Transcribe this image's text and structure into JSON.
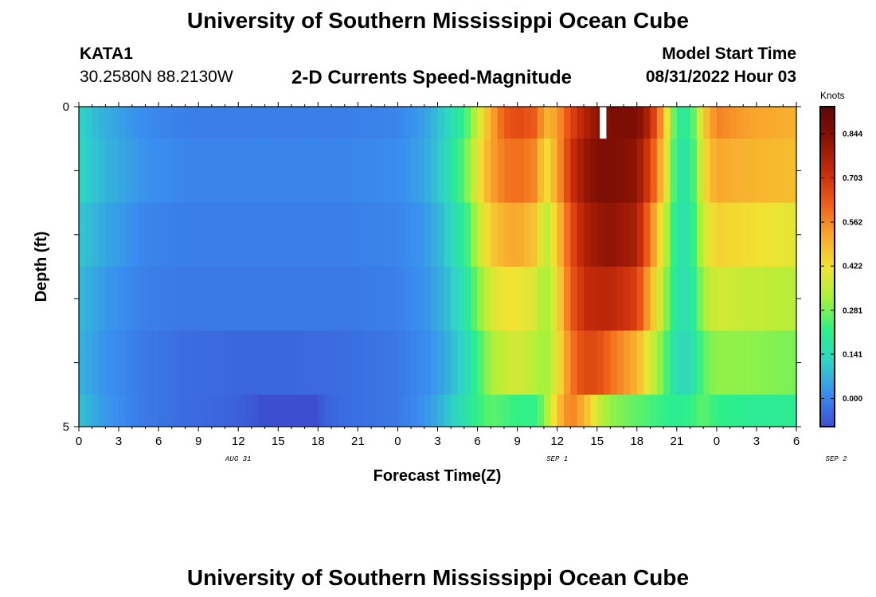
{
  "header": {
    "main_title": "University of Southern Mississippi Ocean Cube",
    "station_id": "KATA1",
    "station_coords": "30.2580N  88.2130W",
    "chart_title": "2-D Currents Speed-Magnitude",
    "model_label": "Model Start Time",
    "model_time": "08/31/2022 Hour 03"
  },
  "footer": {
    "title": "University of Southern Mississippi Ocean Cube"
  },
  "chart_data": {
    "type": "heatmap",
    "title": "2-D Currents Speed-Magnitude",
    "xlabel": "Forecast Time(Z)",
    "ylabel": "Depth (ft)",
    "x_tick_labels": [
      "0",
      "3",
      "6",
      "9",
      "12",
      "15",
      "18",
      "21",
      "0",
      "3",
      "6",
      "9",
      "12",
      "15",
      "18",
      "21",
      "0",
      "3",
      "6"
    ],
    "x_date_labels": [
      {
        "label": "AUG 31",
        "hour": 12
      },
      {
        "label": "SEP 1",
        "hour": 36
      },
      {
        "label": "SEP 2",
        "hour": 57
      }
    ],
    "x_range_hours": [
      0,
      54
    ],
    "y_tick_labels": [
      "0",
      "5"
    ],
    "y_range": [
      0,
      5
    ],
    "grid": false,
    "colorbar": {
      "unit_label": "Knots",
      "tick_labels": [
        "0.844",
        "0.703",
        "0.562",
        "0.422",
        "0.281",
        "0.141",
        "0.000"
      ],
      "tick_values": [
        0.844,
        0.703,
        0.562,
        0.422,
        0.281,
        0.141,
        0.0
      ],
      "range": [
        -0.09,
        0.93
      ],
      "colors": [
        "#3b4fd0",
        "#3a8cf0",
        "#2fd3c8",
        "#2bf08a",
        "#a6f23a",
        "#f2e232",
        "#f9a52d",
        "#ee5a18",
        "#c42a0a",
        "#8a1204",
        "#5e0606"
      ]
    },
    "depth_levels": [
      0,
      0.5,
      1.5,
      2.5,
      3.5,
      4.5,
      5
    ],
    "speed_profiles": [
      {
        "depth": "0-0.5",
        "keyframes": [
          [
            0,
            0.12
          ],
          [
            2,
            0.06
          ],
          [
            5,
            0.01
          ],
          [
            8,
            -0.01
          ],
          [
            12,
            -0.01
          ],
          [
            16,
            -0.01
          ],
          [
            20,
            -0.01
          ],
          [
            24,
            0.0
          ],
          [
            26,
            0.04
          ],
          [
            27.5,
            0.11
          ],
          [
            29,
            0.22
          ],
          [
            30,
            0.36
          ],
          [
            31,
            0.51
          ],
          [
            32,
            0.62
          ],
          [
            33,
            0.66
          ],
          [
            34.5,
            0.62
          ],
          [
            35,
            0.49
          ],
          [
            36,
            0.53
          ],
          [
            37,
            0.66
          ],
          [
            38,
            0.75
          ],
          [
            39,
            0.82
          ],
          [
            40,
            0.86
          ],
          [
            42,
            0.86
          ],
          [
            43,
            0.74
          ],
          [
            44,
            0.5
          ],
          [
            45,
            0.2
          ],
          [
            46,
            0.2
          ],
          [
            46.5,
            0.32
          ],
          [
            47,
            0.45
          ],
          [
            48,
            0.57
          ],
          [
            50,
            0.53
          ],
          [
            54,
            0.5
          ]
        ]
      },
      {
        "depth": "0.5-1.5",
        "keyframes": [
          [
            0,
            0.13
          ],
          [
            2,
            0.07
          ],
          [
            5,
            0.02
          ],
          [
            8,
            0.0
          ],
          [
            12,
            0.0
          ],
          [
            16,
            0.0
          ],
          [
            20,
            0.0
          ],
          [
            24,
            0.01
          ],
          [
            26,
            0.05
          ],
          [
            27.5,
            0.12
          ],
          [
            29,
            0.26
          ],
          [
            30,
            0.4
          ],
          [
            31,
            0.52
          ],
          [
            32,
            0.58
          ],
          [
            33,
            0.6
          ],
          [
            34.5,
            0.56
          ],
          [
            35,
            0.4
          ],
          [
            36,
            0.52
          ],
          [
            37,
            0.7
          ],
          [
            38,
            0.8
          ],
          [
            39,
            0.85
          ],
          [
            40,
            0.86
          ],
          [
            42,
            0.82
          ],
          [
            43,
            0.67
          ],
          [
            44,
            0.46
          ],
          [
            45,
            0.18
          ],
          [
            46,
            0.18
          ],
          [
            46.5,
            0.3
          ],
          [
            47,
            0.42
          ],
          [
            48,
            0.52
          ],
          [
            50,
            0.5
          ],
          [
            54,
            0.48
          ]
        ]
      },
      {
        "depth": "1.5-2.5",
        "keyframes": [
          [
            0,
            0.1
          ],
          [
            2,
            0.05
          ],
          [
            5,
            0.0
          ],
          [
            8,
            -0.01
          ],
          [
            12,
            -0.01
          ],
          [
            16,
            -0.01
          ],
          [
            20,
            -0.01
          ],
          [
            24,
            0.0
          ],
          [
            26,
            0.03
          ],
          [
            27.5,
            0.09
          ],
          [
            29,
            0.2
          ],
          [
            30,
            0.34
          ],
          [
            31,
            0.46
          ],
          [
            32,
            0.5
          ],
          [
            33,
            0.52
          ],
          [
            34.5,
            0.46
          ],
          [
            35,
            0.32
          ],
          [
            36,
            0.46
          ],
          [
            37,
            0.64
          ],
          [
            38,
            0.76
          ],
          [
            39,
            0.8
          ],
          [
            40,
            0.82
          ],
          [
            42,
            0.77
          ],
          [
            43,
            0.58
          ],
          [
            44,
            0.38
          ],
          [
            45,
            0.17
          ],
          [
            46,
            0.17
          ],
          [
            46.5,
            0.27
          ],
          [
            47,
            0.37
          ],
          [
            48,
            0.45
          ],
          [
            50,
            0.43
          ],
          [
            54,
            0.4
          ]
        ]
      },
      {
        "depth": "2.5-3.5",
        "keyframes": [
          [
            0,
            0.08
          ],
          [
            2,
            0.03
          ],
          [
            5,
            -0.01
          ],
          [
            8,
            -0.02
          ],
          [
            12,
            -0.02
          ],
          [
            16,
            -0.02
          ],
          [
            20,
            -0.02
          ],
          [
            24,
            -0.01
          ],
          [
            26,
            0.02
          ],
          [
            27.5,
            0.07
          ],
          [
            29,
            0.16
          ],
          [
            30,
            0.28
          ],
          [
            31,
            0.38
          ],
          [
            32,
            0.42
          ],
          [
            33,
            0.42
          ],
          [
            34.5,
            0.38
          ],
          [
            35,
            0.3
          ],
          [
            36,
            0.42
          ],
          [
            37,
            0.62
          ],
          [
            38,
            0.72
          ],
          [
            39,
            0.74
          ],
          [
            40,
            0.74
          ],
          [
            42,
            0.68
          ],
          [
            43,
            0.5
          ],
          [
            44,
            0.33
          ],
          [
            45,
            0.16
          ],
          [
            46,
            0.16
          ],
          [
            46.5,
            0.24
          ],
          [
            47,
            0.32
          ],
          [
            48,
            0.38
          ],
          [
            50,
            0.36
          ],
          [
            54,
            0.34
          ]
        ]
      },
      {
        "depth": "3.5-4.5",
        "keyframes": [
          [
            0,
            0.07
          ],
          [
            2,
            0.02
          ],
          [
            5,
            -0.02
          ],
          [
            8,
            -0.04
          ],
          [
            12,
            -0.05
          ],
          [
            16,
            -0.05
          ],
          [
            20,
            -0.04
          ],
          [
            24,
            -0.02
          ],
          [
            26,
            0.01
          ],
          [
            27.5,
            0.05
          ],
          [
            29,
            0.13
          ],
          [
            30,
            0.22
          ],
          [
            31,
            0.32
          ],
          [
            32,
            0.36
          ],
          [
            33,
            0.38
          ],
          [
            34.5,
            0.34
          ],
          [
            35,
            0.3
          ],
          [
            36,
            0.4
          ],
          [
            37,
            0.58
          ],
          [
            38,
            0.66
          ],
          [
            39,
            0.66
          ],
          [
            40,
            0.6
          ],
          [
            42,
            0.5
          ],
          [
            43,
            0.38
          ],
          [
            44,
            0.27
          ],
          [
            45,
            0.14
          ],
          [
            46,
            0.14
          ],
          [
            46.5,
            0.2
          ],
          [
            47,
            0.26
          ],
          [
            48,
            0.3
          ],
          [
            50,
            0.3
          ],
          [
            54,
            0.28
          ]
        ]
      },
      {
        "depth": "4.5-5",
        "keyframes": [
          [
            0,
            0.09
          ],
          [
            2,
            0.03
          ],
          [
            5,
            -0.02
          ],
          [
            8,
            -0.04
          ],
          [
            12,
            -0.06
          ],
          [
            13.5,
            -0.08
          ],
          [
            14.5,
            -0.12
          ],
          [
            15.5,
            -0.13
          ],
          [
            16.5,
            -0.13
          ],
          [
            17.5,
            -0.1
          ],
          [
            18.5,
            -0.06
          ],
          [
            20,
            -0.04
          ],
          [
            24,
            -0.02
          ],
          [
            26,
            0.02
          ],
          [
            27.5,
            0.08
          ],
          [
            29,
            0.16
          ],
          [
            30,
            0.22
          ],
          [
            31,
            0.26
          ],
          [
            32,
            0.24
          ],
          [
            33,
            0.22
          ],
          [
            34.5,
            0.22
          ],
          [
            35,
            0.3
          ],
          [
            36,
            0.46
          ],
          [
            37,
            0.58
          ],
          [
            38,
            0.5
          ],
          [
            39,
            0.38
          ],
          [
            40,
            0.3
          ],
          [
            42,
            0.26
          ],
          [
            43,
            0.24
          ],
          [
            44,
            0.22
          ],
          [
            45,
            0.2
          ],
          [
            46,
            0.22
          ],
          [
            47,
            0.26
          ],
          [
            48,
            0.22
          ],
          [
            50,
            0.2
          ],
          [
            54,
            0.2
          ]
        ]
      }
    ],
    "missing_cells": [
      {
        "depth": "0-0.5",
        "hour_start": 39.2,
        "hour_end": 39.7
      }
    ]
  }
}
